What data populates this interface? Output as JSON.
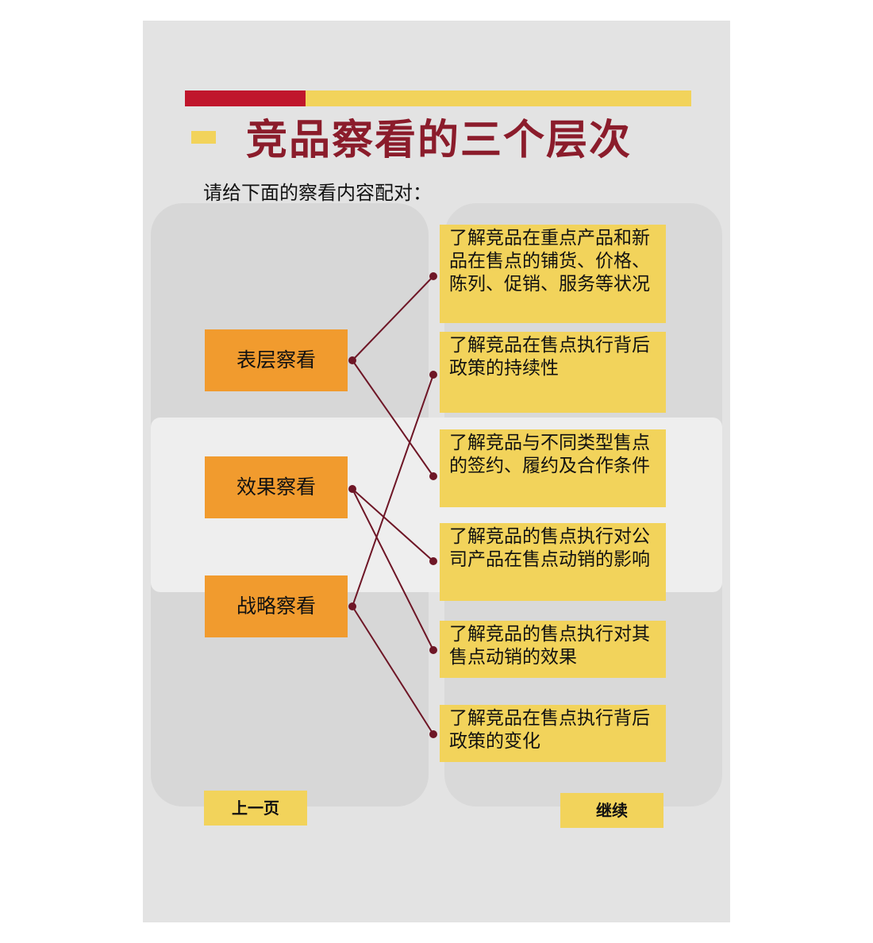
{
  "title": "竞品察看的三个层次",
  "subtitle": "请给下面的察看内容配对：",
  "levels": [
    {
      "label": "表层察看"
    },
    {
      "label": "效果察看"
    },
    {
      "label": "战略察看"
    }
  ],
  "items": [
    {
      "text": "了解竞品在重点产品和新品在售点的铺货、价格、陈列、促销、服务等状况"
    },
    {
      "text": "了解竞品在售点执行背后政策的持续性"
    },
    {
      "text": "了解竞品与不同类型售点的签约、履约及合作条件"
    },
    {
      "text": "了解竞品的售点执行对公司产品在售点动销的影响"
    },
    {
      "text": "了解竞品的售点执行对其售点动销的效果"
    },
    {
      "text": "了解竞品在售点执行背后政策的变化"
    }
  ],
  "matches": [
    [
      0,
      0
    ],
    [
      0,
      2
    ],
    [
      1,
      3
    ],
    [
      1,
      4
    ],
    [
      2,
      1
    ],
    [
      2,
      5
    ]
  ],
  "buttons": {
    "prev": "上一页",
    "next": "继续"
  },
  "colors": {
    "accent_red": "#c0162c",
    "accent_yellow": "#f2d35b",
    "level_orange": "#f19b2e",
    "title_color": "#8b1c2b",
    "line_color": "#6e1626"
  }
}
